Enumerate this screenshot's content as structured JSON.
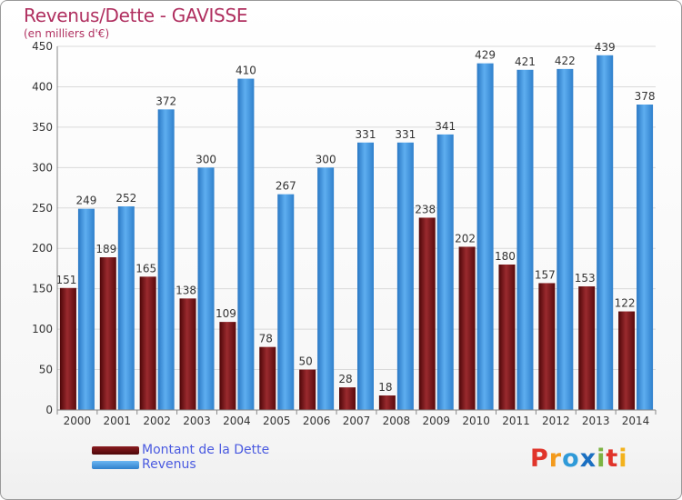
{
  "header": {
    "title": "Revenus/Dette - GAVISSE",
    "subtitle": "(en milliers d'€)"
  },
  "chart_data": {
    "type": "bar",
    "categories": [
      "2000",
      "2001",
      "2002",
      "2003",
      "2004",
      "2005",
      "2006",
      "2007",
      "2008",
      "2009",
      "2010",
      "2011",
      "2012",
      "2013",
      "2014"
    ],
    "series": [
      {
        "name": "Montant de la Dette",
        "values": [
          151,
          189,
          165,
          138,
          109,
          78,
          50,
          28,
          18,
          238,
          202,
          180,
          157,
          153,
          122
        ],
        "color": "#6b0f12"
      },
      {
        "name": "Revenus",
        "values": [
          249,
          252,
          372,
          300,
          410,
          267,
          300,
          331,
          331,
          341,
          429,
          421,
          422,
          439,
          378
        ],
        "color": "#3a8fd9"
      }
    ],
    "yticks": [
      0,
      50,
      100,
      150,
      200,
      250,
      300,
      350,
      400,
      450
    ],
    "ylim": [
      0,
      450
    ],
    "grid": true,
    "legend_position": "bottom-left"
  },
  "legend": {
    "debt_label": "Montant de la Dette",
    "revenue_label": "Revenus"
  },
  "logo": {
    "letters": [
      "P",
      "r",
      "o",
      "x",
      "i",
      "t",
      "i"
    ],
    "colors": [
      "#e0342a",
      "#f39a1c",
      "#2f9ad8",
      "#1a6fc1",
      "#7cb342",
      "#e0342a",
      "#f3b21c"
    ]
  }
}
